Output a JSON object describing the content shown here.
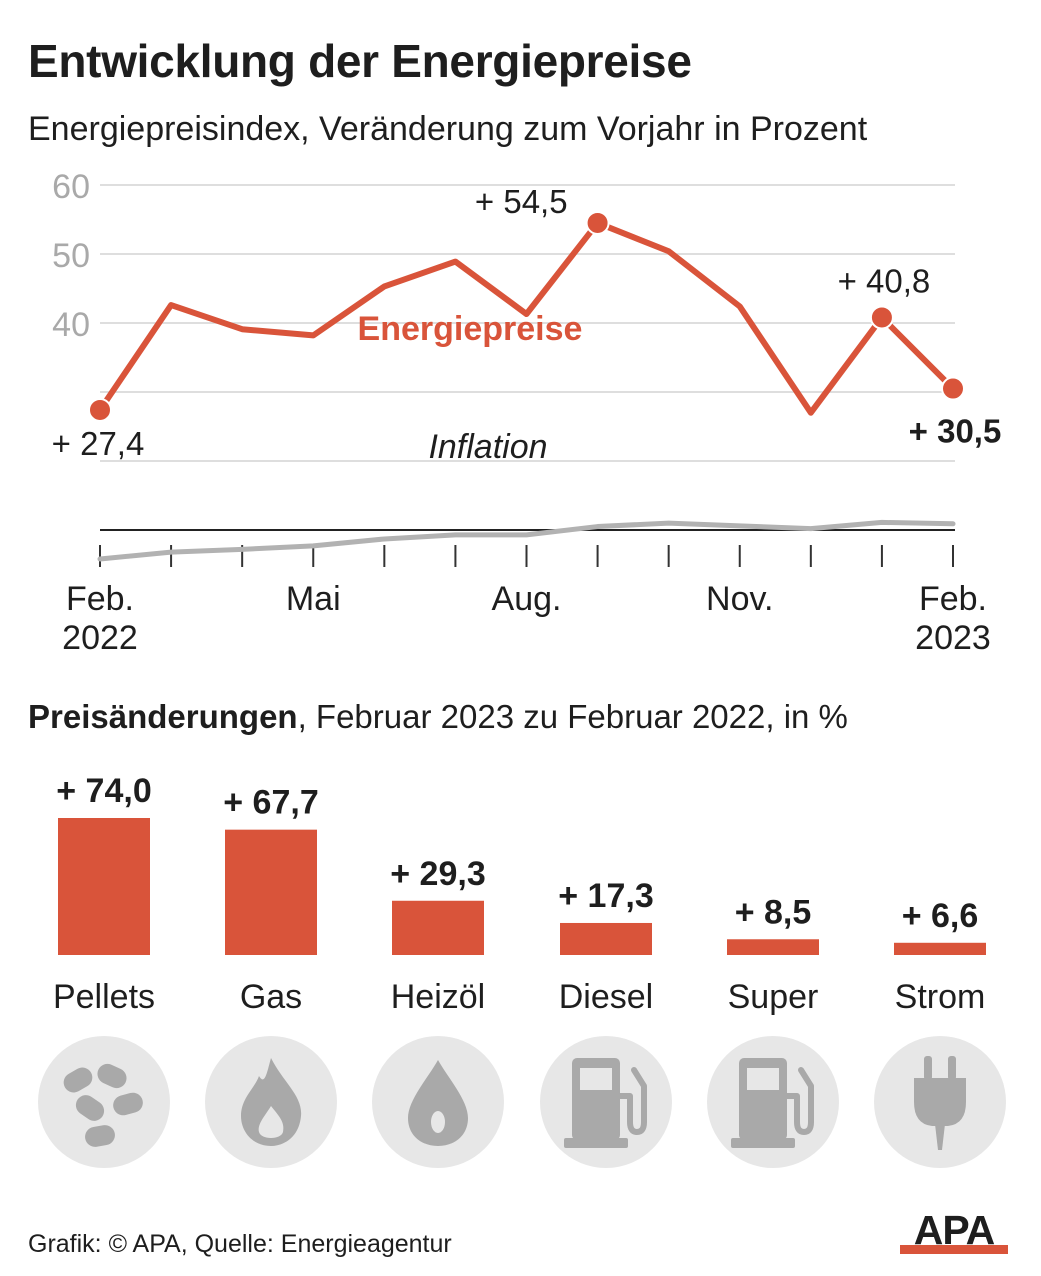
{
  "title": "Entwicklung der Energiepreise",
  "subtitle": "Energiepreisindex, Veränderung zum Vorjahr in Prozent",
  "colors": {
    "accent": "#d9543a",
    "inflation": "#b2b2b2",
    "grid": "#d4d4d4",
    "icon_bg": "#e7e7e7",
    "icon": "#a9a9a9",
    "text": "#1e1e1e",
    "tick_gray": "#a9a9a9"
  },
  "chart_data": [
    {
      "type": "line",
      "title": "Entwicklung der Energiepreise",
      "subtitle": "Energiepreisindex, Veränderung zum Vorjahr in Prozent",
      "x": [
        "2022-02",
        "2022-03",
        "2022-04",
        "2022-05",
        "2022-06",
        "2022-07",
        "2022-08",
        "2022-09",
        "2022-10",
        "2022-11",
        "2022-12",
        "2023-01",
        "2023-02"
      ],
      "x_tick_labels": [
        {
          "x": "2022-02",
          "line1": "Feb.",
          "line2": "2022"
        },
        {
          "x": "2022-05",
          "line1": "Mai",
          "line2": ""
        },
        {
          "x": "2022-08",
          "line1": "Aug.",
          "line2": ""
        },
        {
          "x": "2022-11",
          "line1": "Nov.",
          "line2": ""
        },
        {
          "x": "2023-02",
          "line1": "Feb.",
          "line2": "2023"
        }
      ],
      "y_ticks": [
        "40",
        "50",
        "60"
      ],
      "ylim": [
        10,
        60
      ],
      "grid": true,
      "series": [
        {
          "name": "Energiepreise",
          "values": [
            27.4,
            42.6,
            39.1,
            38.2,
            45.3,
            48.9,
            41.3,
            54.5,
            50.4,
            42.4,
            27.0,
            40.8,
            30.5
          ],
          "color": "#d9543a",
          "labels": [
            {
              "index": 0,
              "text": "+ 27,4",
              "bold": false
            },
            {
              "index": 7,
              "text": "+ 54,5",
              "bold": false
            },
            {
              "index": 11,
              "text": "+ 40,8",
              "bold": false
            },
            {
              "index": 12,
              "text": "+ 30,5",
              "bold": true
            }
          ]
        },
        {
          "name": "Inflation",
          "values": [
            5.8,
            6.8,
            7.2,
            7.7,
            8.7,
            9.3,
            9.3,
            10.5,
            11.0,
            10.6,
            10.2,
            11.1,
            10.9
          ],
          "color": "#b2b2b2"
        }
      ]
    },
    {
      "type": "bar",
      "title_bold": "Preisänderungen",
      "title_rest": ", Februar 2023 zu Februar 2022, in %",
      "categories": [
        "Pellets",
        "Gas",
        "Heizöl",
        "Diesel",
        "Super",
        "Strom"
      ],
      "values": [
        74.0,
        67.7,
        29.3,
        17.3,
        8.5,
        6.6
      ],
      "value_labels": [
        "+ 74,0",
        "+ 67,7",
        "+ 29,3",
        "+ 17,3",
        "+ 8,5",
        "+ 6,6"
      ],
      "icons": [
        "pellets-icon",
        "gas-flame-icon",
        "oil-drop-icon",
        "fuel-pump-icon",
        "fuel-pump-icon",
        "power-plug-icon"
      ],
      "color": "#d9543a"
    }
  ],
  "footer": {
    "source": "Grafik: © APA, Quelle: Energieagentur",
    "logo_text": "APA"
  }
}
